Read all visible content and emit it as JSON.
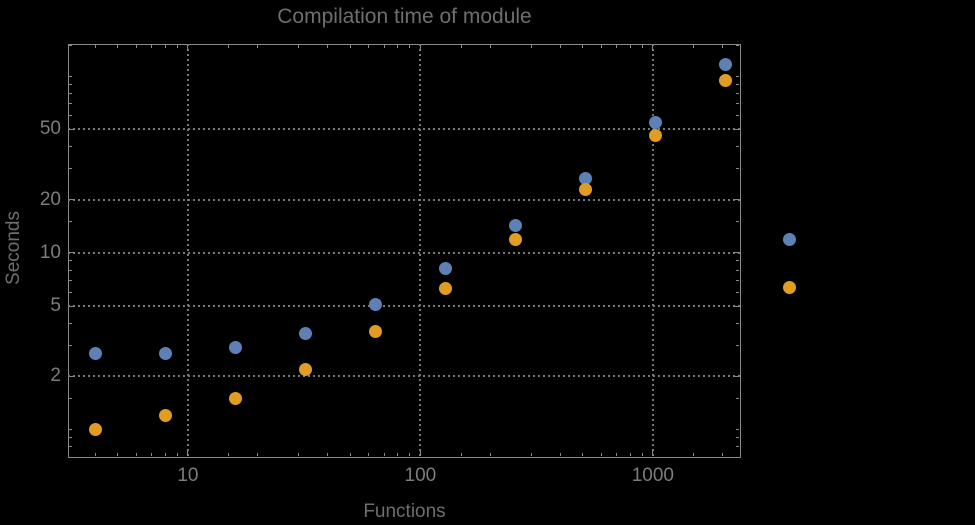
{
  "chart_data": {
    "type": "scatter",
    "title": "Compilation time of module",
    "xlabel": "Functions",
    "ylabel": "Seconds",
    "xscale": "log",
    "yscale": "log",
    "xlim": [
      3.05,
      2370
    ],
    "ylim": [
      0.7,
      152
    ],
    "grid": "dotted lines at major ticks",
    "x_major_ticks": [
      {
        "v": 10,
        "label": "10"
      },
      {
        "v": 100,
        "label": "100"
      },
      {
        "v": 1000,
        "label": "1000"
      }
    ],
    "x_minor_ticks": [
      4,
      5,
      6,
      7,
      8,
      9,
      15,
      20,
      30,
      40,
      50,
      60,
      70,
      80,
      90,
      150,
      200,
      300,
      400,
      500,
      600,
      700,
      800,
      900,
      1500,
      2000
    ],
    "y_major_ticks": [
      {
        "v": 2,
        "label": "2"
      },
      {
        "v": 5,
        "label": "5"
      },
      {
        "v": 10,
        "label": "10"
      },
      {
        "v": 20,
        "label": "20"
      },
      {
        "v": 50,
        "label": "50"
      }
    ],
    "y_minor_ticks": [
      0.8,
      0.9,
      1,
      1.5,
      3,
      4,
      6,
      7,
      8,
      9,
      15,
      30,
      40,
      60,
      70,
      80,
      90,
      100,
      150
    ],
    "series": [
      {
        "name": "blue",
        "color": "#5E81B5",
        "points": [
          [
            4,
            2.7
          ],
          [
            8,
            2.7
          ],
          [
            16,
            2.9
          ],
          [
            32,
            3.5
          ],
          [
            64,
            5.1
          ],
          [
            128,
            8.2
          ],
          [
            256,
            14.2
          ],
          [
            512,
            26.5
          ],
          [
            1024,
            55
          ],
          [
            2048,
            117
          ]
        ]
      },
      {
        "name": "orange",
        "color": "#E19C24",
        "points": [
          [
            4,
            1.0
          ],
          [
            8,
            1.2
          ],
          [
            16,
            1.5
          ],
          [
            32,
            2.2
          ],
          [
            64,
            3.6
          ],
          [
            128,
            6.3
          ],
          [
            256,
            11.9
          ],
          [
            512,
            22.7
          ],
          [
            1024,
            46
          ],
          [
            2048,
            95
          ]
        ]
      }
    ],
    "legend": {
      "position": "right-of-plot",
      "entries": [
        {
          "series": "blue",
          "marker_color": "#5E81B5",
          "label": ""
        },
        {
          "series": "orange",
          "marker_color": "#E19C24",
          "label": ""
        }
      ]
    }
  },
  "colors": {
    "background": "#000000",
    "frame": "#8a8a8a",
    "grid": "#787878",
    "tick_label": "#7d7d7d",
    "title": "#6e6e6e",
    "axis_label": "#6e6e6e"
  }
}
